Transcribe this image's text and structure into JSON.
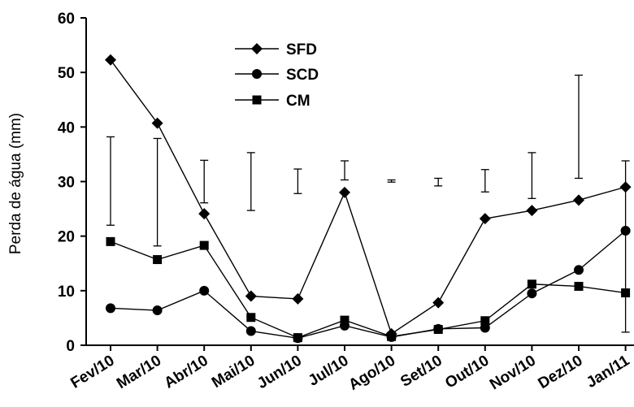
{
  "chart_data": {
    "type": "line",
    "ylabel": "Perda de água (mm)",
    "ylim": [
      0,
      60
    ],
    "yticks": [
      0,
      10,
      20,
      30,
      40,
      50,
      60
    ],
    "grid": false,
    "legend_position": "top-center",
    "categories": [
      "Fev/10",
      "Mar/10",
      "Abr/10",
      "Mai/10",
      "Jun/10",
      "Jul/10",
      "Ago/10",
      "Set/10",
      "Out/10",
      "Nov/10",
      "Dez/10",
      "Jan/11"
    ],
    "series": [
      {
        "name": "SFD",
        "marker": "diamond",
        "values": [
          52.3,
          40.7,
          24.1,
          9.0,
          8.5,
          28.0,
          2.1,
          7.8,
          23.2,
          24.7,
          26.6,
          29.0
        ]
      },
      {
        "name": "SCD",
        "marker": "circle",
        "values": [
          6.8,
          6.4,
          10.0,
          2.6,
          1.3,
          3.6,
          1.5,
          3.0,
          3.2,
          9.5,
          13.8,
          21.0
        ]
      },
      {
        "name": "CM",
        "marker": "square",
        "values": [
          19.0,
          15.7,
          18.3,
          5.1,
          1.4,
          4.6,
          1.6,
          2.9,
          4.5,
          11.2,
          10.8,
          9.6
        ]
      }
    ],
    "error_bars": [
      {
        "low": 22.0,
        "high": 38.2
      },
      {
        "low": 18.2,
        "high": 37.9
      },
      {
        "low": 26.1,
        "high": 33.9
      },
      {
        "low": 24.7,
        "high": 35.3
      },
      {
        "low": 27.8,
        "high": 32.3
      },
      {
        "low": 30.3,
        "high": 33.8
      },
      {
        "low": 29.9,
        "high": 30.3
      },
      {
        "low": 29.2,
        "high": 30.6
      },
      {
        "low": 28.1,
        "high": 32.2
      },
      {
        "low": 26.9,
        "high": 35.3
      },
      {
        "low": 30.6,
        "high": 49.5
      },
      {
        "low": 2.4,
        "high": 33.8
      }
    ]
  }
}
